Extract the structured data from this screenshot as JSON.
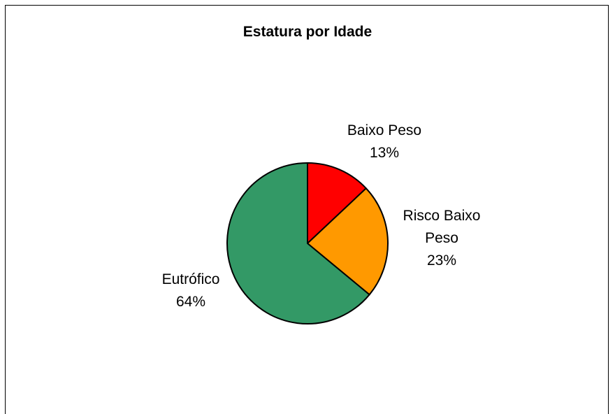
{
  "chart_data": {
    "type": "pie",
    "title": "Estatura por Idade",
    "slices": [
      {
        "name": "Baixo Peso",
        "value": 13,
        "label": "13%",
        "color": "#ff0000"
      },
      {
        "name": "Risco Baixo Peso",
        "value": 23,
        "label": "23%",
        "color": "#ff9900"
      },
      {
        "name": "Eutrófico",
        "value": 64,
        "label": "64%",
        "color": "#339966"
      }
    ],
    "start_angle": "12 o'clock",
    "direction": "clockwise",
    "legend": "none",
    "data_labels": "outside, category name and percentage"
  }
}
